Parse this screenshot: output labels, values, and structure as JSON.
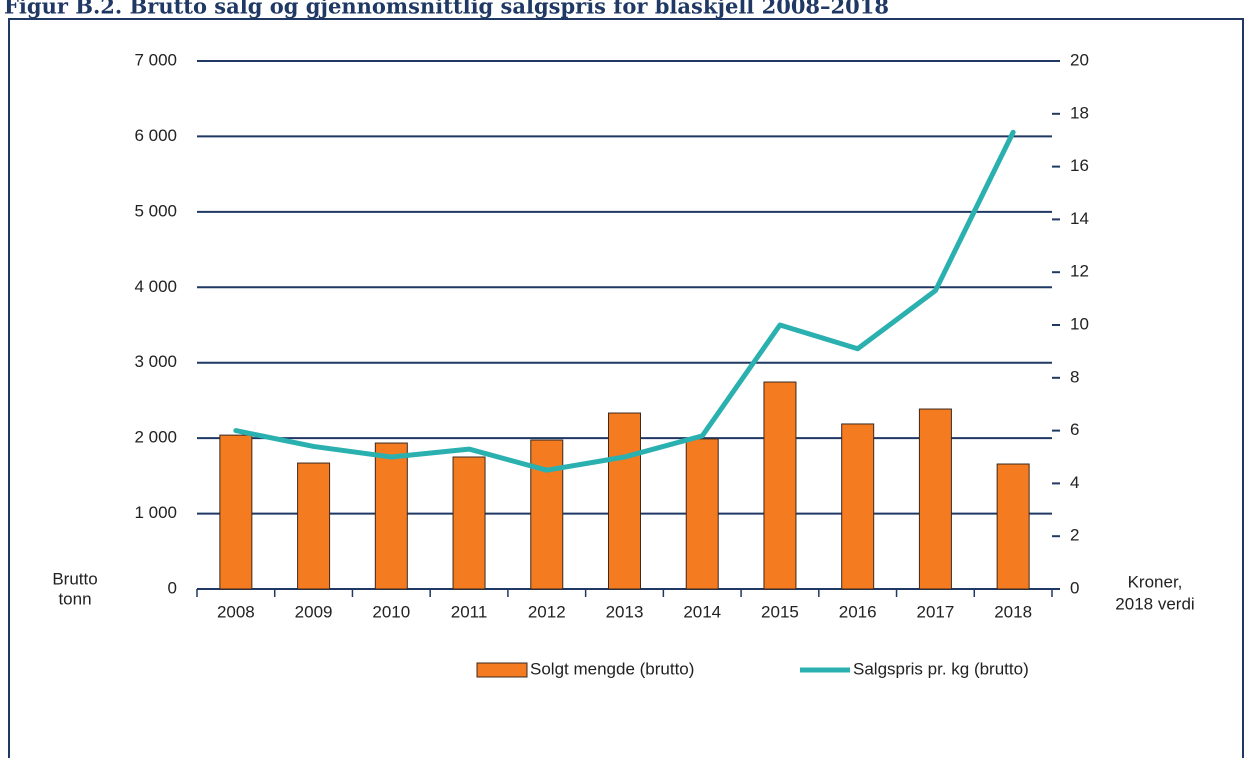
{
  "chart_data": {
    "type": "bar+line",
    "title": "Figur B.2. Brutto salg og gjennomsnittlig salgspris for blåskjell 2008–2018",
    "y_label": [
      "Brutto",
      "tonn"
    ],
    "y2_label": [
      "Kroner,",
      "2018 verdi"
    ],
    "categories": [
      "2008",
      "2009",
      "2010",
      "2011",
      "2012",
      "2013",
      "2014",
      "2015",
      "2016",
      "2017",
      "2018"
    ],
    "series": [
      {
        "name": "Solgt mengde (brutto)",
        "type": "bar",
        "color": "#f47b20",
        "values": [
          2040,
          1670,
          1935,
          1750,
          1975,
          2333,
          1990,
          2744,
          2188,
          2386,
          1657
        ]
      },
      {
        "name": "Salgspris pr. kg (brutto)",
        "type": "line",
        "axis": "y2",
        "color": "#2bb0b0",
        "values": [
          6.0,
          5.4,
          5.0,
          5.3,
          4.5,
          5.0,
          5.8,
          10.0,
          9.1,
          11.3,
          17.3
        ]
      }
    ],
    "ylim": [
      0,
      7000
    ],
    "yticks": [
      0,
      {
        "value": 1000,
        "label": "1 000"
      },
      {
        "value": 2000,
        "label": "2 000"
      },
      {
        "value": 3000,
        "label": "3 000"
      },
      {
        "value": 4000,
        "label": "4 000"
      },
      {
        "value": 5000,
        "label": "5 000"
      },
      {
        "value": 6000,
        "label": "6 000"
      },
      {
        "value": 7000,
        "label": "7 000"
      }
    ],
    "y2lim": [
      0,
      20
    ],
    "y2ticks": [
      0,
      2,
      4,
      6,
      8,
      10,
      12,
      14,
      16,
      18,
      20
    ],
    "grid": true
  }
}
